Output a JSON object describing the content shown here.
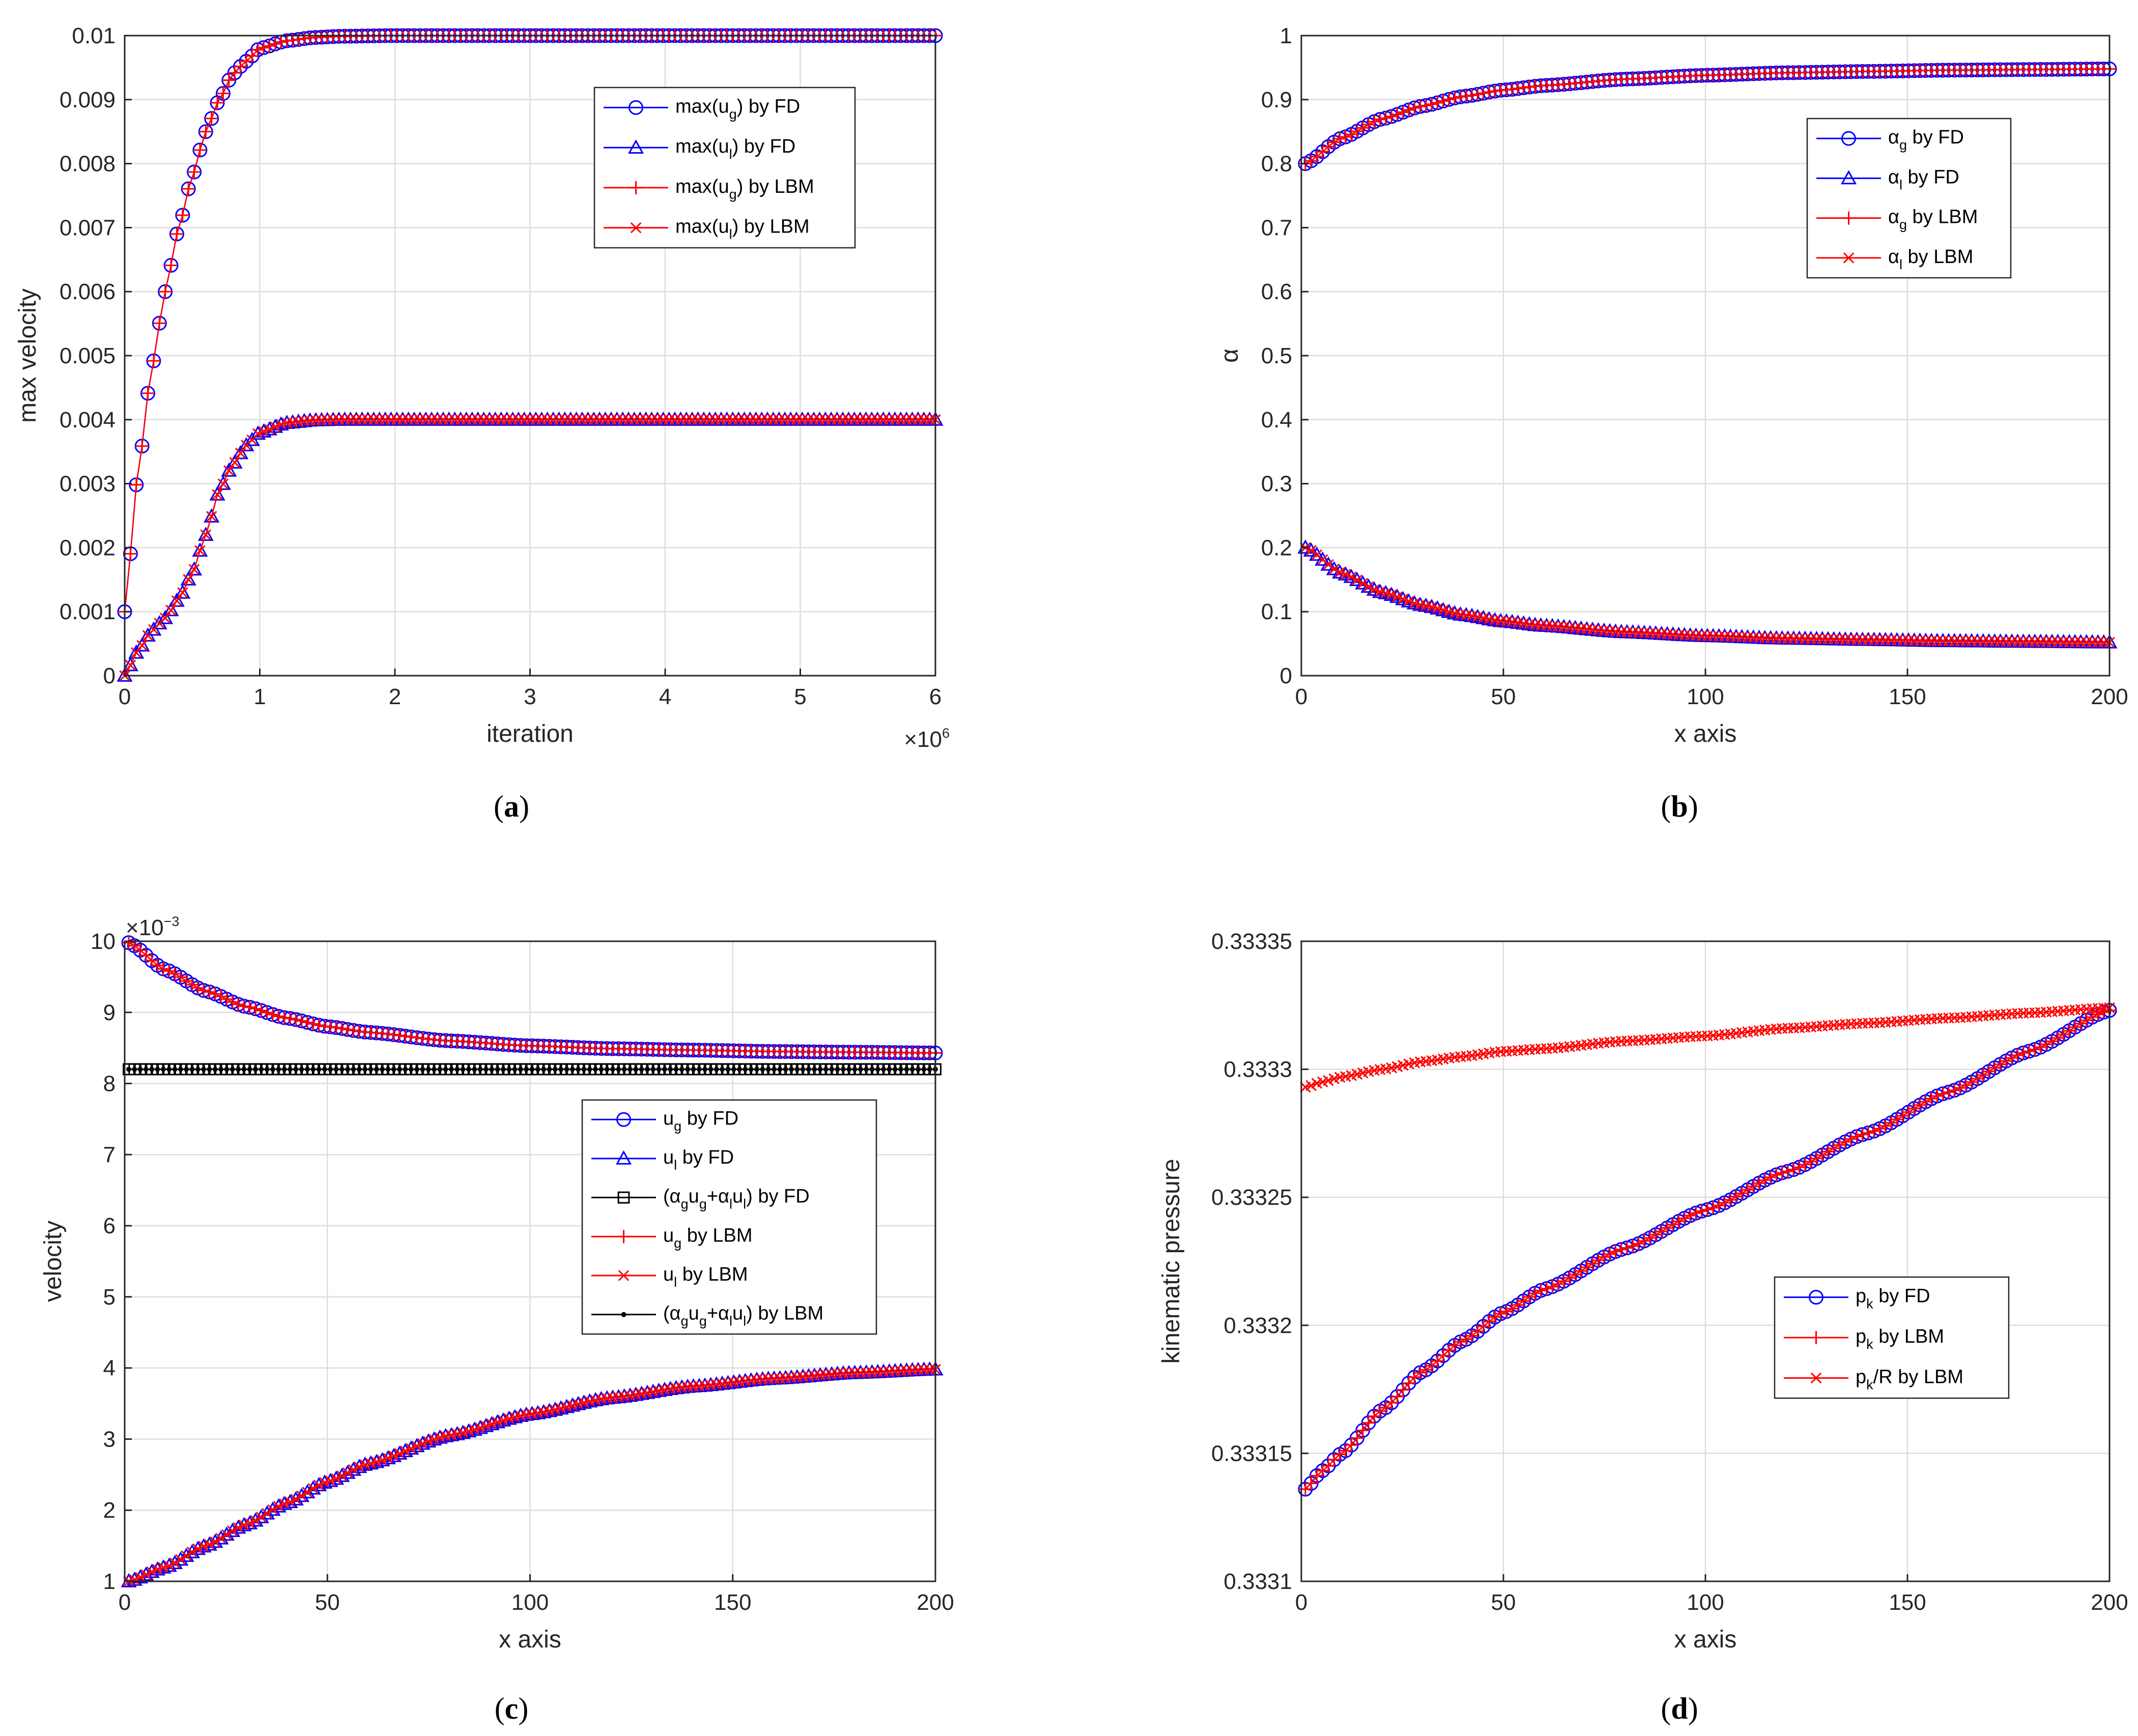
{
  "chart_data": [
    {
      "id": "a",
      "type": "line",
      "caption": "a",
      "xlabel": "iteration",
      "ylabel": "max velocity",
      "xlim": [
        0,
        6
      ],
      "ylim": [
        0,
        0.01
      ],
      "xticks": [
        0,
        1,
        2,
        3,
        4,
        5,
        6
      ],
      "yticks": [
        0,
        0.001,
        0.002,
        0.003,
        0.004,
        0.005,
        0.006,
        0.007,
        0.008,
        0.009,
        0.01
      ],
      "xtick_labels": [
        "0",
        "1",
        "2",
        "3",
        "4",
        "5",
        "6"
      ],
      "ytick_labels": [
        "0",
        "0.001",
        "0.002",
        "0.003",
        "0.004",
        "0.005",
        "0.006",
        "0.007",
        "0.008",
        "0.009",
        "0.01"
      ],
      "x_exponent_label": "×10",
      "x_exponent_power": "6",
      "grid": true,
      "legend_position": "top-right",
      "legend": [
        {
          "pre": "max(u",
          "sub": "g",
          "post": ") by FD",
          "color": "#0000ff",
          "marker": "circle"
        },
        {
          "pre": "max(u",
          "sub": "l",
          "post": ") by FD",
          "color": "#0000ff",
          "marker": "triangle"
        },
        {
          "pre": "max(u",
          "sub": "g",
          "post": ") by LBM",
          "color": "#ff0000",
          "marker": "plus"
        },
        {
          "pre": "max(u",
          "sub": "l",
          "post": ") by LBM",
          "color": "#ff0000",
          "marker": "cross"
        }
      ],
      "series": [
        {
          "name": "max(ug) by FD",
          "color": "#0000ff",
          "marker": "circle",
          "x": [
            0,
            0.1,
            0.2,
            0.3,
            0.4,
            0.5,
            0.6,
            0.7,
            0.8,
            0.9,
            1.0,
            1.2,
            1.4,
            1.6,
            2.0,
            3.0,
            4.0,
            5.0,
            6.0
          ],
          "y": [
            0.001,
            0.0032,
            0.0048,
            0.006,
            0.007,
            0.0078,
            0.0085,
            0.009,
            0.0094,
            0.0096,
            0.0098,
            0.00992,
            0.00997,
            0.00999,
            0.01,
            0.01,
            0.01,
            0.01,
            0.01
          ]
        },
        {
          "name": "max(ul) by FD",
          "color": "#0000ff",
          "marker": "triangle",
          "x": [
            0,
            0.1,
            0.2,
            0.3,
            0.4,
            0.5,
            0.6,
            0.7,
            0.8,
            0.9,
            1.0,
            1.2,
            1.4,
            1.6,
            2.0,
            3.0,
            4.0,
            5.0,
            6.0
          ],
          "y": [
            0.0,
            0.0004,
            0.0007,
            0.0009,
            0.0012,
            0.0016,
            0.0022,
            0.0029,
            0.0033,
            0.0036,
            0.0038,
            0.00395,
            0.00399,
            0.004,
            0.004,
            0.004,
            0.004,
            0.004,
            0.004
          ]
        },
        {
          "name": "max(ug) by LBM",
          "color": "#ff0000",
          "marker": "plus",
          "x": [
            0,
            0.1,
            0.2,
            0.3,
            0.4,
            0.5,
            0.6,
            0.7,
            0.8,
            0.9,
            1.0,
            1.2,
            1.4,
            1.6,
            2.0,
            3.0,
            4.0,
            5.0,
            6.0
          ],
          "y": [
            0.001,
            0.0032,
            0.0048,
            0.006,
            0.007,
            0.0078,
            0.0085,
            0.009,
            0.0094,
            0.0096,
            0.0098,
            0.00992,
            0.00997,
            0.00999,
            0.01,
            0.01,
            0.01,
            0.01,
            0.01
          ]
        },
        {
          "name": "max(ul) by LBM",
          "color": "#ff0000",
          "marker": "cross",
          "x": [
            0,
            0.1,
            0.2,
            0.3,
            0.4,
            0.5,
            0.6,
            0.7,
            0.8,
            0.9,
            1.0,
            1.2,
            1.4,
            1.6,
            2.0,
            3.0,
            4.0,
            5.0,
            6.0
          ],
          "y": [
            0.0,
            0.0004,
            0.0007,
            0.0009,
            0.0012,
            0.0016,
            0.0022,
            0.0029,
            0.0033,
            0.0036,
            0.0038,
            0.00395,
            0.00399,
            0.004,
            0.004,
            0.004,
            0.004,
            0.004,
            0.004
          ]
        }
      ]
    },
    {
      "id": "b",
      "type": "line",
      "caption": "b",
      "xlabel": "x axis",
      "ylabel": "α",
      "xlim": [
        0,
        200
      ],
      "ylim": [
        0,
        1
      ],
      "xticks": [
        0,
        50,
        100,
        150,
        200
      ],
      "yticks": [
        0,
        0.1,
        0.2,
        0.3,
        0.4,
        0.5,
        0.6,
        0.7,
        0.8,
        0.9,
        1
      ],
      "xtick_labels": [
        "0",
        "50",
        "100",
        "150",
        "200"
      ],
      "ytick_labels": [
        "0",
        "0.1",
        "0.2",
        "0.3",
        "0.4",
        "0.5",
        "0.6",
        "0.7",
        "0.8",
        "0.9",
        "1"
      ],
      "grid": true,
      "legend_position": "top-right",
      "legend": [
        {
          "pre": "α",
          "sub": "g",
          "post": " by FD",
          "color": "#0000ff",
          "marker": "circle"
        },
        {
          "pre": "α",
          "sub": "l",
          "post": " by FD",
          "color": "#0000ff",
          "marker": "triangle"
        },
        {
          "pre": "α",
          "sub": "g",
          "post": " by LBM",
          "color": "#ff0000",
          "marker": "plus"
        },
        {
          "pre": "α",
          "sub": "l",
          "post": " by LBM",
          "color": "#ff0000",
          "marker": "cross"
        }
      ],
      "series": [
        {
          "name": "αg by FD",
          "color": "#0000ff",
          "marker": "circle",
          "x": [
            1,
            10,
            20,
            30,
            40,
            50,
            60,
            80,
            100,
            120,
            140,
            160,
            180,
            200
          ],
          "y": [
            0.8,
            0.84,
            0.87,
            0.89,
            0.905,
            0.915,
            0.922,
            0.932,
            0.938,
            0.942,
            0.944,
            0.946,
            0.947,
            0.948
          ]
        },
        {
          "name": "αl by FD",
          "color": "#0000ff",
          "marker": "triangle",
          "x": [
            1,
            10,
            20,
            30,
            40,
            50,
            60,
            80,
            100,
            120,
            140,
            160,
            180,
            200
          ],
          "y": [
            0.2,
            0.16,
            0.13,
            0.11,
            0.095,
            0.085,
            0.078,
            0.068,
            0.062,
            0.058,
            0.056,
            0.054,
            0.053,
            0.052
          ]
        },
        {
          "name": "αg by LBM",
          "color": "#ff0000",
          "marker": "plus",
          "x": [
            1,
            10,
            20,
            30,
            40,
            50,
            60,
            80,
            100,
            120,
            140,
            160,
            180,
            200
          ],
          "y": [
            0.8,
            0.84,
            0.87,
            0.89,
            0.905,
            0.915,
            0.922,
            0.932,
            0.938,
            0.942,
            0.944,
            0.946,
            0.947,
            0.948
          ]
        },
        {
          "name": "αl by LBM",
          "color": "#ff0000",
          "marker": "cross",
          "x": [
            1,
            10,
            20,
            30,
            40,
            50,
            60,
            80,
            100,
            120,
            140,
            160,
            180,
            200
          ],
          "y": [
            0.2,
            0.16,
            0.13,
            0.11,
            0.095,
            0.085,
            0.078,
            0.068,
            0.062,
            0.058,
            0.056,
            0.054,
            0.053,
            0.052
          ]
        }
      ]
    },
    {
      "id": "c",
      "type": "line",
      "caption": "c",
      "xlabel": "x axis",
      "ylabel": "velocity",
      "xlim": [
        0,
        200
      ],
      "ylim": [
        1,
        10
      ],
      "xticks": [
        0,
        50,
        100,
        150,
        200
      ],
      "yticks": [
        1,
        2,
        3,
        4,
        5,
        6,
        7,
        8,
        9,
        10
      ],
      "xtick_labels": [
        "0",
        "50",
        "100",
        "150",
        "200"
      ],
      "ytick_labels": [
        "1",
        "2",
        "3",
        "4",
        "5",
        "6",
        "7",
        "8",
        "9",
        "10"
      ],
      "y_exponent_label": "×10",
      "y_exponent_power": "−3",
      "grid": true,
      "legend_position": "center-right",
      "legend": [
        {
          "pre": "u",
          "sub": "g",
          "post": " by FD",
          "color": "#0000ff",
          "marker": "circle"
        },
        {
          "pre": "u",
          "sub": "l",
          "post": " by FD",
          "color": "#0000ff",
          "marker": "triangle"
        },
        {
          "pre": "(α",
          "sub": "g",
          "mid": "u",
          "sub2": "g",
          "mid2": "+α",
          "sub3": "l",
          "mid3": "u",
          "sub4": "l",
          "post": ") by FD",
          "color": "#000000",
          "marker": "square"
        },
        {
          "pre": "u",
          "sub": "g",
          "post": " by LBM",
          "color": "#ff0000",
          "marker": "plus"
        },
        {
          "pre": "u",
          "sub": "l",
          "post": " by LBM",
          "color": "#ff0000",
          "marker": "cross"
        },
        {
          "pre": "(α",
          "sub": "g",
          "mid": "u",
          "sub2": "g",
          "mid2": "+α",
          "sub3": "l",
          "mid3": "u",
          "sub4": "l",
          "post": ") by LBM",
          "color": "#000000",
          "marker": "dot"
        }
      ],
      "series": [
        {
          "name": "ug by FD",
          "color": "#0000ff",
          "marker": "circle",
          "x": [
            1,
            10,
            20,
            30,
            40,
            50,
            60,
            80,
            100,
            120,
            140,
            160,
            180,
            200
          ],
          "y": [
            9.98,
            9.6,
            9.3,
            9.08,
            8.92,
            8.8,
            8.72,
            8.6,
            8.53,
            8.49,
            8.47,
            8.45,
            8.44,
            8.43
          ]
        },
        {
          "name": "ul by FD",
          "color": "#0000ff",
          "marker": "triangle",
          "x": [
            1,
            10,
            20,
            30,
            40,
            50,
            60,
            80,
            100,
            120,
            140,
            160,
            180,
            200
          ],
          "y": [
            1.0,
            1.2,
            1.5,
            1.8,
            2.1,
            2.4,
            2.65,
            3.05,
            3.35,
            3.58,
            3.74,
            3.85,
            3.93,
            3.98
          ]
        },
        {
          "name": "(αgug+αlul) by FD",
          "color": "#000000",
          "marker": "square",
          "x": [
            1,
            25,
            50,
            75,
            100,
            125,
            150,
            175,
            200
          ],
          "y": [
            8.2,
            8.2,
            8.2,
            8.2,
            8.2,
            8.2,
            8.2,
            8.2,
            8.2
          ]
        },
        {
          "name": "ug by LBM",
          "color": "#ff0000",
          "marker": "plus",
          "x": [
            1,
            10,
            20,
            30,
            40,
            50,
            60,
            80,
            100,
            120,
            140,
            160,
            180,
            200
          ],
          "y": [
            9.98,
            9.6,
            9.3,
            9.08,
            8.92,
            8.8,
            8.72,
            8.6,
            8.53,
            8.49,
            8.47,
            8.45,
            8.44,
            8.43
          ]
        },
        {
          "name": "ul by LBM",
          "color": "#ff0000",
          "marker": "cross",
          "x": [
            1,
            10,
            20,
            30,
            40,
            50,
            60,
            80,
            100,
            120,
            140,
            160,
            180,
            200
          ],
          "y": [
            1.0,
            1.2,
            1.5,
            1.8,
            2.1,
            2.4,
            2.65,
            3.05,
            3.35,
            3.58,
            3.74,
            3.85,
            3.93,
            3.98
          ]
        },
        {
          "name": "(αgug+αlul) by LBM",
          "color": "#000000",
          "marker": "dot",
          "x": [
            1,
            25,
            50,
            75,
            100,
            125,
            150,
            175,
            200
          ],
          "y": [
            8.2,
            8.2,
            8.2,
            8.2,
            8.2,
            8.2,
            8.2,
            8.2,
            8.2
          ]
        }
      ]
    },
    {
      "id": "d",
      "type": "line",
      "caption": "d",
      "xlabel": "x axis",
      "ylabel": "kinematic pressure",
      "xlim": [
        0,
        200
      ],
      "ylim": [
        0.3331,
        0.33335
      ],
      "xticks": [
        0,
        50,
        100,
        150,
        200
      ],
      "yticks": [
        0.3331,
        0.33315,
        0.3332,
        0.33325,
        0.3333,
        0.33335
      ],
      "xtick_labels": [
        "0",
        "50",
        "100",
        "150",
        "200"
      ],
      "ytick_labels": [
        "0.3331",
        "0.33315",
        "0.3332",
        "0.33325",
        "0.3333",
        "0.33335"
      ],
      "grid": true,
      "legend_position": "bottom-right",
      "legend": [
        {
          "pre": "p",
          "sub": "k",
          "post": " by FD",
          "color": "#0000ff",
          "marker": "circle"
        },
        {
          "pre": "p",
          "sub": "k",
          "post": " by LBM",
          "color": "#ff0000",
          "marker": "plus"
        },
        {
          "pre": "p",
          "sub": "k",
          "post": "/R by LBM",
          "color": "#ff0000",
          "marker": "cross"
        }
      ],
      "series": [
        {
          "name": "pk by FD",
          "color": "#0000ff",
          "marker": "circle",
          "x": [
            1,
            5,
            10,
            20,
            30,
            40,
            50,
            60,
            80,
            100,
            120,
            140,
            160,
            180,
            200
          ],
          "y": [
            0.333136,
            0.333143,
            0.33315,
            0.333167,
            0.333182,
            0.333194,
            0.333205,
            0.333214,
            0.33323,
            0.333245,
            0.33326,
            0.333275,
            0.333291,
            0.333307,
            0.333323
          ]
        },
        {
          "name": "pk by LBM",
          "color": "#ff0000",
          "marker": "plus",
          "x": [
            1,
            5,
            10,
            20,
            30,
            40,
            50,
            60,
            80,
            100,
            120,
            140,
            160,
            180,
            200
          ],
          "y": [
            0.333136,
            0.333143,
            0.33315,
            0.333167,
            0.333182,
            0.333194,
            0.333205,
            0.333214,
            0.33323,
            0.333245,
            0.33326,
            0.333275,
            0.333291,
            0.333307,
            0.333323
          ]
        },
        {
          "name": "pk/R by LBM",
          "color": "#ff0000",
          "marker": "cross",
          "x": [
            1,
            5,
            10,
            20,
            30,
            40,
            50,
            60,
            80,
            100,
            120,
            140,
            160,
            180,
            200
          ],
          "y": [
            0.333293,
            0.333295,
            0.333297,
            0.3333,
            0.333303,
            0.333305,
            0.333307,
            0.333308,
            0.333311,
            0.333313,
            0.333316,
            0.333318,
            0.33332,
            0.333322,
            0.333324
          ]
        }
      ]
    }
  ]
}
